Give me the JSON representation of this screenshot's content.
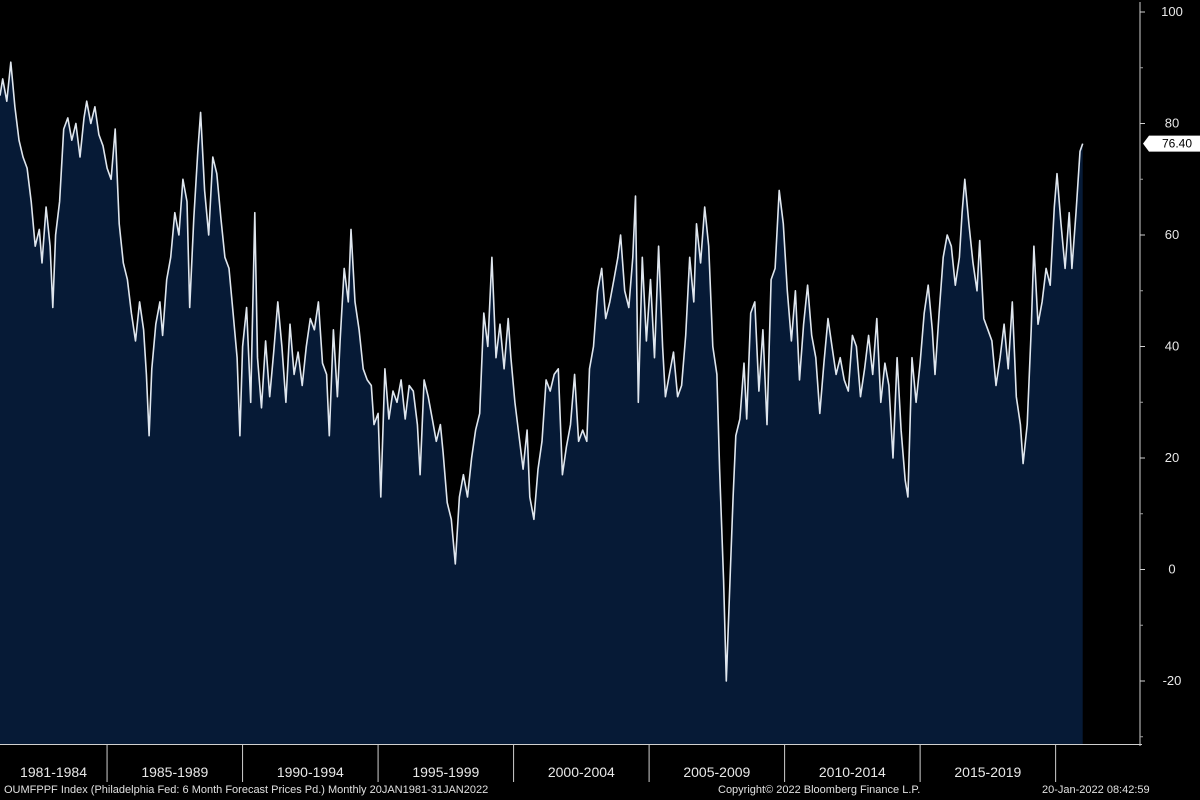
{
  "footer": {
    "source": "OUMFPPF Index (Philadelphia Fed: 6 Month Forecast Prices Pd.)  Monthly 20JAN1981-31JAN2022",
    "copyright": "Copyright© 2022 Bloomberg Finance L.P.",
    "timestamp": "20-Jan-2022 08:42:59"
  },
  "chart_data": {
    "type": "area",
    "title": "",
    "xlabel": "",
    "ylabel": "",
    "ylim": [
      -30,
      100
    ],
    "yticks": [
      100,
      80,
      60,
      40,
      20,
      0,
      -20
    ],
    "y_axis_side": "right",
    "grid": false,
    "x_range": [
      1981.05,
      2022.08
    ],
    "x_tick_labels": [
      "1981-1984",
      "1985-1989",
      "1990-1994",
      "1995-1999",
      "2000-2004",
      "2005-2009",
      "2010-2014",
      "2015-2019"
    ],
    "x_tick_boundaries": [
      1985,
      1990,
      1995,
      2000,
      2005,
      2010,
      2015,
      2020
    ],
    "last_value_label": "76.40",
    "colors": {
      "background": "#000000",
      "area_fill": "#061a36",
      "line": "#dfe6ee",
      "last_value_bg": "#ffffff"
    },
    "series": [
      {
        "values": [
          [
            1981.05,
            85
          ],
          [
            1981.15,
            88
          ],
          [
            1981.3,
            84
          ],
          [
            1981.45,
            91
          ],
          [
            1981.6,
            83
          ],
          [
            1981.75,
            77
          ],
          [
            1981.9,
            74
          ],
          [
            1982.05,
            72
          ],
          [
            1982.2,
            66
          ],
          [
            1982.35,
            58
          ],
          [
            1982.5,
            61
          ],
          [
            1982.6,
            55
          ],
          [
            1982.75,
            65
          ],
          [
            1982.9,
            58
          ],
          [
            1983.0,
            47
          ],
          [
            1983.1,
            60
          ],
          [
            1983.25,
            66
          ],
          [
            1983.4,
            79
          ],
          [
            1983.55,
            81
          ],
          [
            1983.7,
            77
          ],
          [
            1983.85,
            80
          ],
          [
            1984.0,
            74
          ],
          [
            1984.15,
            81
          ],
          [
            1984.25,
            84
          ],
          [
            1984.4,
            80
          ],
          [
            1984.55,
            83
          ],
          [
            1984.7,
            78
          ],
          [
            1984.85,
            76
          ],
          [
            1985.0,
            72
          ],
          [
            1985.15,
            70
          ],
          [
            1985.3,
            79
          ],
          [
            1985.45,
            62
          ],
          [
            1985.6,
            55
          ],
          [
            1985.75,
            52
          ],
          [
            1985.9,
            46
          ],
          [
            1986.05,
            41
          ],
          [
            1986.2,
            48
          ],
          [
            1986.35,
            43
          ],
          [
            1986.45,
            35
          ],
          [
            1986.55,
            24
          ],
          [
            1986.65,
            36
          ],
          [
            1986.8,
            44
          ],
          [
            1986.95,
            48
          ],
          [
            1987.05,
            42
          ],
          [
            1987.2,
            52
          ],
          [
            1987.35,
            56
          ],
          [
            1987.5,
            64
          ],
          [
            1987.65,
            60
          ],
          [
            1987.8,
            70
          ],
          [
            1987.95,
            66
          ],
          [
            1988.05,
            47
          ],
          [
            1988.2,
            63
          ],
          [
            1988.35,
            75
          ],
          [
            1988.45,
            82
          ],
          [
            1988.6,
            68
          ],
          [
            1988.75,
            60
          ],
          [
            1988.9,
            74
          ],
          [
            1989.05,
            71
          ],
          [
            1989.2,
            63
          ],
          [
            1989.35,
            56
          ],
          [
            1989.5,
            54
          ],
          [
            1989.65,
            46
          ],
          [
            1989.8,
            38
          ],
          [
            1989.9,
            24
          ],
          [
            1990.0,
            40
          ],
          [
            1990.15,
            47
          ],
          [
            1990.3,
            30
          ],
          [
            1990.45,
            64
          ],
          [
            1990.55,
            38
          ],
          [
            1990.7,
            29
          ],
          [
            1990.85,
            41
          ],
          [
            1991.0,
            31
          ],
          [
            1991.15,
            39
          ],
          [
            1991.3,
            48
          ],
          [
            1991.45,
            40
          ],
          [
            1991.6,
            30
          ],
          [
            1991.75,
            44
          ],
          [
            1991.9,
            35
          ],
          [
            1992.05,
            39
          ],
          [
            1992.2,
            33
          ],
          [
            1992.35,
            40
          ],
          [
            1992.5,
            45
          ],
          [
            1992.65,
            43
          ],
          [
            1992.8,
            48
          ],
          [
            1992.95,
            37
          ],
          [
            1993.1,
            35
          ],
          [
            1993.2,
            24
          ],
          [
            1993.35,
            43
          ],
          [
            1993.5,
            31
          ],
          [
            1993.6,
            41
          ],
          [
            1993.75,
            54
          ],
          [
            1993.9,
            48
          ],
          [
            1994.0,
            61
          ],
          [
            1994.15,
            48
          ],
          [
            1994.3,
            43
          ],
          [
            1994.45,
            36
          ],
          [
            1994.6,
            34
          ],
          [
            1994.75,
            33
          ],
          [
            1994.85,
            26
          ],
          [
            1995.0,
            28
          ],
          [
            1995.1,
            13
          ],
          [
            1995.25,
            36
          ],
          [
            1995.4,
            27
          ],
          [
            1995.55,
            32
          ],
          [
            1995.7,
            30
          ],
          [
            1995.85,
            34
          ],
          [
            1996.0,
            27
          ],
          [
            1996.15,
            33
          ],
          [
            1996.3,
            32
          ],
          [
            1996.45,
            26
          ],
          [
            1996.55,
            17
          ],
          [
            1996.7,
            34
          ],
          [
            1996.85,
            31
          ],
          [
            1997.0,
            27
          ],
          [
            1997.15,
            23
          ],
          [
            1997.3,
            26
          ],
          [
            1997.4,
            21
          ],
          [
            1997.55,
            12
          ],
          [
            1997.7,
            9
          ],
          [
            1997.85,
            1
          ],
          [
            1998.0,
            13
          ],
          [
            1998.15,
            17
          ],
          [
            1998.3,
            13
          ],
          [
            1998.45,
            20
          ],
          [
            1998.6,
            25
          ],
          [
            1998.75,
            28
          ],
          [
            1998.9,
            46
          ],
          [
            1999.05,
            40
          ],
          [
            1999.2,
            56
          ],
          [
            1999.35,
            38
          ],
          [
            1999.5,
            44
          ],
          [
            1999.65,
            36
          ],
          [
            1999.8,
            45
          ],
          [
            1999.9,
            38
          ],
          [
            2000.05,
            30
          ],
          [
            2000.2,
            24
          ],
          [
            2000.35,
            18
          ],
          [
            2000.5,
            25
          ],
          [
            2000.6,
            13
          ],
          [
            2000.75,
            9
          ],
          [
            2000.9,
            18
          ],
          [
            2001.05,
            23
          ],
          [
            2001.2,
            34
          ],
          [
            2001.35,
            32
          ],
          [
            2001.5,
            35
          ],
          [
            2001.65,
            36
          ],
          [
            2001.8,
            17
          ],
          [
            2001.95,
            22
          ],
          [
            2002.1,
            26
          ],
          [
            2002.25,
            35
          ],
          [
            2002.4,
            23
          ],
          [
            2002.55,
            25
          ],
          [
            2002.7,
            23
          ],
          [
            2002.8,
            36
          ],
          [
            2002.95,
            40
          ],
          [
            2003.1,
            50
          ],
          [
            2003.25,
            54
          ],
          [
            2003.4,
            45
          ],
          [
            2003.55,
            48
          ],
          [
            2003.7,
            52
          ],
          [
            2003.85,
            56
          ],
          [
            2003.95,
            60
          ],
          [
            2004.1,
            50
          ],
          [
            2004.25,
            47
          ],
          [
            2004.4,
            56
          ],
          [
            2004.5,
            67
          ],
          [
            2004.6,
            30
          ],
          [
            2004.75,
            56
          ],
          [
            2004.9,
            41
          ],
          [
            2005.05,
            52
          ],
          [
            2005.2,
            38
          ],
          [
            2005.35,
            58
          ],
          [
            2005.5,
            40
          ],
          [
            2005.6,
            31
          ],
          [
            2005.75,
            35
          ],
          [
            2005.9,
            39
          ],
          [
            2006.05,
            31
          ],
          [
            2006.2,
            33
          ],
          [
            2006.35,
            42
          ],
          [
            2006.5,
            56
          ],
          [
            2006.65,
            48
          ],
          [
            2006.75,
            62
          ],
          [
            2006.9,
            55
          ],
          [
            2007.05,
            65
          ],
          [
            2007.2,
            58
          ],
          [
            2007.35,
            40
          ],
          [
            2007.5,
            35
          ],
          [
            2007.6,
            18
          ],
          [
            2007.75,
            -2
          ],
          [
            2007.85,
            -20
          ],
          [
            2008.0,
            0
          ],
          [
            2008.1,
            13
          ],
          [
            2008.2,
            24
          ],
          [
            2008.35,
            27
          ],
          [
            2008.5,
            37
          ],
          [
            2008.6,
            27
          ],
          [
            2008.75,
            46
          ],
          [
            2008.9,
            48
          ],
          [
            2009.05,
            32
          ],
          [
            2009.2,
            43
          ],
          [
            2009.35,
            26
          ],
          [
            2009.5,
            52
          ],
          [
            2009.65,
            54
          ],
          [
            2009.8,
            68
          ],
          [
            2009.95,
            62
          ],
          [
            2010.1,
            50
          ],
          [
            2010.25,
            41
          ],
          [
            2010.4,
            50
          ],
          [
            2010.55,
            34
          ],
          [
            2010.7,
            44
          ],
          [
            2010.85,
            51
          ],
          [
            2011.0,
            42
          ],
          [
            2011.15,
            38
          ],
          [
            2011.3,
            28
          ],
          [
            2011.45,
            37
          ],
          [
            2011.6,
            45
          ],
          [
            2011.75,
            40
          ],
          [
            2011.9,
            35
          ],
          [
            2012.05,
            38
          ],
          [
            2012.2,
            34
          ],
          [
            2012.35,
            32
          ],
          [
            2012.5,
            42
          ],
          [
            2012.65,
            40
          ],
          [
            2012.8,
            31
          ],
          [
            2012.95,
            36
          ],
          [
            2013.1,
            42
          ],
          [
            2013.25,
            35
          ],
          [
            2013.4,
            45
          ],
          [
            2013.55,
            30
          ],
          [
            2013.7,
            37
          ],
          [
            2013.85,
            33
          ],
          [
            2014.0,
            20
          ],
          [
            2014.15,
            38
          ],
          [
            2014.3,
            25
          ],
          [
            2014.45,
            16
          ],
          [
            2014.55,
            13
          ],
          [
            2014.7,
            38
          ],
          [
            2014.85,
            30
          ],
          [
            2015.0,
            37
          ],
          [
            2015.15,
            46
          ],
          [
            2015.3,
            51
          ],
          [
            2015.45,
            43
          ],
          [
            2015.55,
            35
          ],
          [
            2015.7,
            46
          ],
          [
            2015.85,
            56
          ],
          [
            2016.0,
            60
          ],
          [
            2016.15,
            58
          ],
          [
            2016.3,
            51
          ],
          [
            2016.45,
            56
          ],
          [
            2016.55,
            64
          ],
          [
            2016.65,
            70
          ],
          [
            2016.8,
            62
          ],
          [
            2016.95,
            55
          ],
          [
            2017.1,
            50
          ],
          [
            2017.2,
            59
          ],
          [
            2017.35,
            45
          ],
          [
            2017.5,
            43
          ],
          [
            2017.65,
            41
          ],
          [
            2017.8,
            33
          ],
          [
            2017.95,
            38
          ],
          [
            2018.1,
            44
          ],
          [
            2018.25,
            36
          ],
          [
            2018.4,
            48
          ],
          [
            2018.55,
            31
          ],
          [
            2018.7,
            26
          ],
          [
            2018.8,
            19
          ],
          [
            2018.95,
            26
          ],
          [
            2019.1,
            43
          ],
          [
            2019.2,
            58
          ],
          [
            2019.35,
            44
          ],
          [
            2019.5,
            48
          ],
          [
            2019.65,
            54
          ],
          [
            2019.8,
            51
          ],
          [
            2019.95,
            65
          ],
          [
            2020.05,
            71
          ],
          [
            2020.2,
            62
          ],
          [
            2020.35,
            54
          ],
          [
            2020.5,
            64
          ],
          [
            2020.6,
            54
          ],
          [
            2020.75,
            64
          ],
          [
            2020.9,
            75
          ],
          [
            2021.0,
            76.4
          ]
        ]
      }
    ]
  }
}
